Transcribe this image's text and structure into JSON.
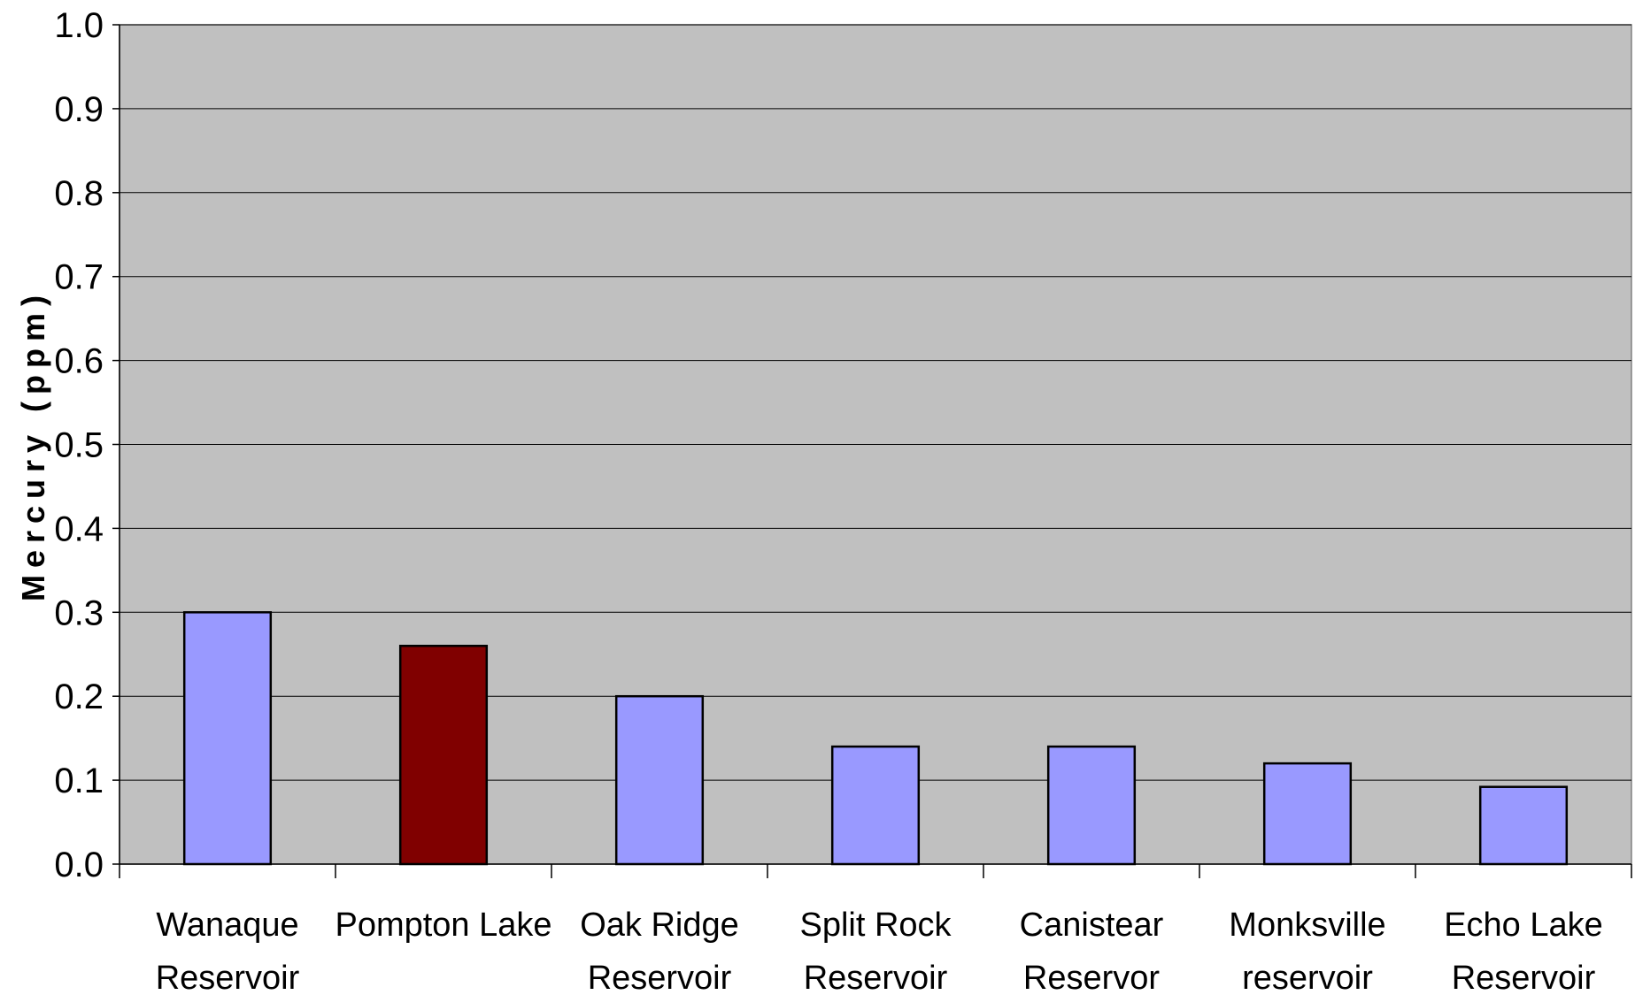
{
  "chart_data": {
    "type": "bar",
    "title": "",
    "xlabel": "",
    "ylabel": "Mercury (ppm)",
    "ylim": [
      0,
      1.0
    ],
    "yticks": [
      "0.0",
      "0.1",
      "0.2",
      "0.3",
      "0.4",
      "0.5",
      "0.6",
      "0.7",
      "0.8",
      "0.9",
      "1.0"
    ],
    "grid": true,
    "legend": "none",
    "categories": [
      [
        "Wanaque",
        "Reservoir"
      ],
      [
        "Pompton Lake"
      ],
      [
        "Oak Ridge",
        "Reservoir"
      ],
      [
        "Split Rock",
        "Reservoir"
      ],
      [
        "Canistear",
        "Reservor"
      ],
      [
        "Monksville",
        "reservoir"
      ],
      [
        "Echo Lake",
        "Reservoir"
      ]
    ],
    "values": [
      0.3,
      0.26,
      0.2,
      0.14,
      0.14,
      0.12,
      0.092
    ],
    "bar_colors": [
      "#9999ff",
      "#800000",
      "#9999ff",
      "#9999ff",
      "#9999ff",
      "#9999ff",
      "#9999ff"
    ],
    "plot_background": "#c0c0c0",
    "grid_color": "#000000"
  }
}
